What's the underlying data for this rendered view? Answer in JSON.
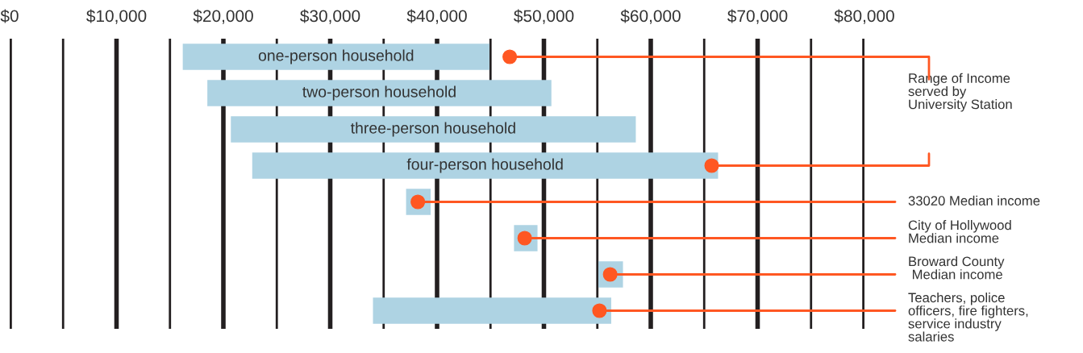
{
  "chart_data": {
    "type": "bar",
    "orientation": "horizontal",
    "categories": [
      "one-person household",
      "two-person household",
      "three-person household",
      "four-person household",
      null,
      null,
      null,
      null
    ],
    "series": [
      {
        "color": "#aed3e3",
        "base": [
          16200,
          18500,
          20700,
          22700,
          37100,
          47200,
          55100,
          34000
        ],
        "values": [
          28700,
          32200,
          37900,
          43600,
          2300,
          2200,
          2300,
          22300
        ]
      },
      {
        "type": "scatter",
        "color": "#ff5722",
        "values": [
          46800,
          null,
          null,
          65700,
          38200,
          48200,
          56200,
          55200
        ]
      }
    ],
    "marker": "circle",
    "xlim": [
      0,
      80000
    ],
    "xticks": [
      {
        "value": 0,
        "label": "$0"
      },
      {
        "value": 5000,
        "label": null
      },
      {
        "value": 10000,
        "label": "$10,000"
      },
      {
        "value": 15000,
        "label": null
      },
      {
        "value": 20000,
        "label": "$20,000"
      },
      {
        "value": 25000,
        "label": null
      },
      {
        "value": 30000,
        "label": "$30,000"
      },
      {
        "value": 35000,
        "label": null
      },
      {
        "value": 40000,
        "label": "$40,000"
      },
      {
        "value": 45000,
        "label": null
      },
      {
        "value": 50000,
        "label": "$50,000"
      },
      {
        "value": 55000,
        "label": null
      },
      {
        "value": 60000,
        "label": "$60,000"
      },
      {
        "value": 65000,
        "label": null
      },
      {
        "value": 70000,
        "label": "$70,000"
      },
      {
        "value": 75000,
        "label": null
      },
      {
        "value": 80000,
        "label": "$80,000"
      }
    ],
    "grid": "x",
    "annotations": [
      "Range of Income\nserved by\nUniversity Station",
      "33020 Median income",
      "City of Hollywood\nMedian income",
      "Broward County\n Median income",
      "Teachers, police\nofficers, fire fighters,\nservice industry\nsalaries"
    ]
  }
}
